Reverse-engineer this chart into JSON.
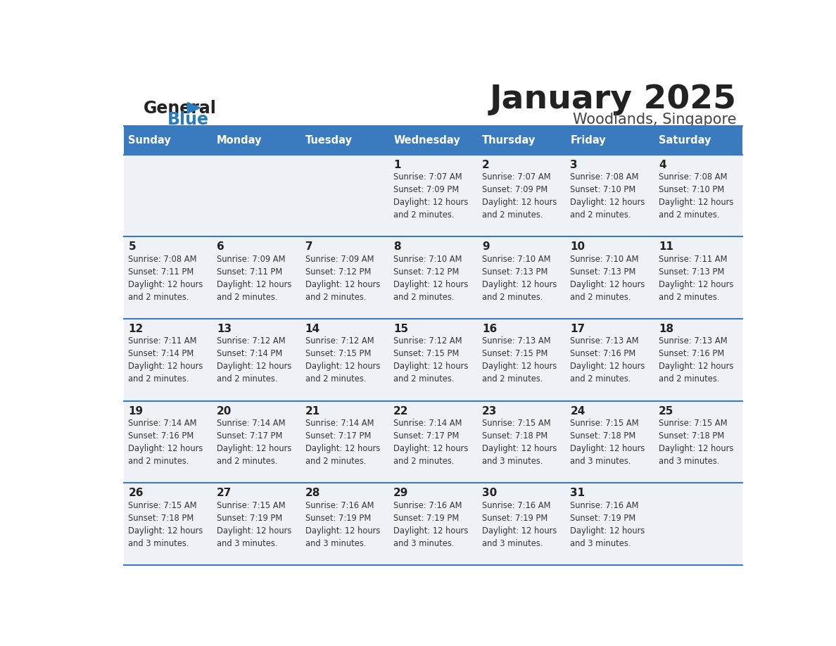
{
  "title": "January 2025",
  "subtitle": "Woodlands, Singapore",
  "header_color": "#3a7abf",
  "header_text_color": "#ffffff",
  "cell_bg_color": "#eef2f7",
  "border_color": "#3a7abf",
  "day_names": [
    "Sunday",
    "Monday",
    "Tuesday",
    "Wednesday",
    "Thursday",
    "Friday",
    "Saturday"
  ],
  "title_color": "#222222",
  "subtitle_color": "#444444",
  "day_num_color": "#222222",
  "info_color": "#333333",
  "logo_general_color": "#222222",
  "logo_blue_color": "#2b7bbf",
  "weeks": [
    [
      {
        "day": "",
        "info": ""
      },
      {
        "day": "",
        "info": ""
      },
      {
        "day": "",
        "info": ""
      },
      {
        "day": "1",
        "info": "Sunrise: 7:07 AM\nSunset: 7:09 PM\nDaylight: 12 hours\nand 2 minutes."
      },
      {
        "day": "2",
        "info": "Sunrise: 7:07 AM\nSunset: 7:09 PM\nDaylight: 12 hours\nand 2 minutes."
      },
      {
        "day": "3",
        "info": "Sunrise: 7:08 AM\nSunset: 7:10 PM\nDaylight: 12 hours\nand 2 minutes."
      },
      {
        "day": "4",
        "info": "Sunrise: 7:08 AM\nSunset: 7:10 PM\nDaylight: 12 hours\nand 2 minutes."
      }
    ],
    [
      {
        "day": "5",
        "info": "Sunrise: 7:08 AM\nSunset: 7:11 PM\nDaylight: 12 hours\nand 2 minutes."
      },
      {
        "day": "6",
        "info": "Sunrise: 7:09 AM\nSunset: 7:11 PM\nDaylight: 12 hours\nand 2 minutes."
      },
      {
        "day": "7",
        "info": "Sunrise: 7:09 AM\nSunset: 7:12 PM\nDaylight: 12 hours\nand 2 minutes."
      },
      {
        "day": "8",
        "info": "Sunrise: 7:10 AM\nSunset: 7:12 PM\nDaylight: 12 hours\nand 2 minutes."
      },
      {
        "day": "9",
        "info": "Sunrise: 7:10 AM\nSunset: 7:13 PM\nDaylight: 12 hours\nand 2 minutes."
      },
      {
        "day": "10",
        "info": "Sunrise: 7:10 AM\nSunset: 7:13 PM\nDaylight: 12 hours\nand 2 minutes."
      },
      {
        "day": "11",
        "info": "Sunrise: 7:11 AM\nSunset: 7:13 PM\nDaylight: 12 hours\nand 2 minutes."
      }
    ],
    [
      {
        "day": "12",
        "info": "Sunrise: 7:11 AM\nSunset: 7:14 PM\nDaylight: 12 hours\nand 2 minutes."
      },
      {
        "day": "13",
        "info": "Sunrise: 7:12 AM\nSunset: 7:14 PM\nDaylight: 12 hours\nand 2 minutes."
      },
      {
        "day": "14",
        "info": "Sunrise: 7:12 AM\nSunset: 7:15 PM\nDaylight: 12 hours\nand 2 minutes."
      },
      {
        "day": "15",
        "info": "Sunrise: 7:12 AM\nSunset: 7:15 PM\nDaylight: 12 hours\nand 2 minutes."
      },
      {
        "day": "16",
        "info": "Sunrise: 7:13 AM\nSunset: 7:15 PM\nDaylight: 12 hours\nand 2 minutes."
      },
      {
        "day": "17",
        "info": "Sunrise: 7:13 AM\nSunset: 7:16 PM\nDaylight: 12 hours\nand 2 minutes."
      },
      {
        "day": "18",
        "info": "Sunrise: 7:13 AM\nSunset: 7:16 PM\nDaylight: 12 hours\nand 2 minutes."
      }
    ],
    [
      {
        "day": "19",
        "info": "Sunrise: 7:14 AM\nSunset: 7:16 PM\nDaylight: 12 hours\nand 2 minutes."
      },
      {
        "day": "20",
        "info": "Sunrise: 7:14 AM\nSunset: 7:17 PM\nDaylight: 12 hours\nand 2 minutes."
      },
      {
        "day": "21",
        "info": "Sunrise: 7:14 AM\nSunset: 7:17 PM\nDaylight: 12 hours\nand 2 minutes."
      },
      {
        "day": "22",
        "info": "Sunrise: 7:14 AM\nSunset: 7:17 PM\nDaylight: 12 hours\nand 2 minutes."
      },
      {
        "day": "23",
        "info": "Sunrise: 7:15 AM\nSunset: 7:18 PM\nDaylight: 12 hours\nand 3 minutes."
      },
      {
        "day": "24",
        "info": "Sunrise: 7:15 AM\nSunset: 7:18 PM\nDaylight: 12 hours\nand 3 minutes."
      },
      {
        "day": "25",
        "info": "Sunrise: 7:15 AM\nSunset: 7:18 PM\nDaylight: 12 hours\nand 3 minutes."
      }
    ],
    [
      {
        "day": "26",
        "info": "Sunrise: 7:15 AM\nSunset: 7:18 PM\nDaylight: 12 hours\nand 3 minutes."
      },
      {
        "day": "27",
        "info": "Sunrise: 7:15 AM\nSunset: 7:19 PM\nDaylight: 12 hours\nand 3 minutes."
      },
      {
        "day": "28",
        "info": "Sunrise: 7:16 AM\nSunset: 7:19 PM\nDaylight: 12 hours\nand 3 minutes."
      },
      {
        "day": "29",
        "info": "Sunrise: 7:16 AM\nSunset: 7:19 PM\nDaylight: 12 hours\nand 3 minutes."
      },
      {
        "day": "30",
        "info": "Sunrise: 7:16 AM\nSunset: 7:19 PM\nDaylight: 12 hours\nand 3 minutes."
      },
      {
        "day": "31",
        "info": "Sunrise: 7:16 AM\nSunset: 7:19 PM\nDaylight: 12 hours\nand 3 minutes."
      },
      {
        "day": "",
        "info": ""
      }
    ]
  ]
}
